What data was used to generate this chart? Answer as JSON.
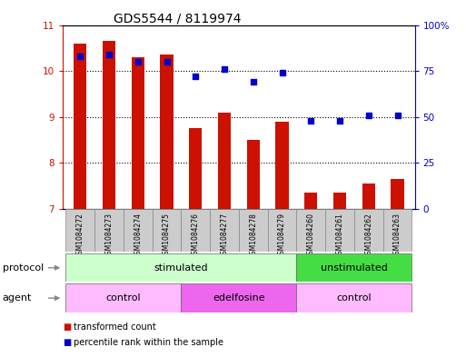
{
  "title": "GDS5544 / 8119974",
  "samples": [
    "GSM1084272",
    "GSM1084273",
    "GSM1084274",
    "GSM1084275",
    "GSM1084276",
    "GSM1084277",
    "GSM1084278",
    "GSM1084279",
    "GSM1084260",
    "GSM1084261",
    "GSM1084262",
    "GSM1084263"
  ],
  "transformed_count": [
    10.6,
    10.65,
    10.3,
    10.35,
    8.75,
    9.1,
    8.5,
    8.9,
    7.35,
    7.35,
    7.55,
    7.65
  ],
  "percentile_rank": [
    83,
    84,
    80,
    80,
    72,
    76,
    69,
    74,
    48,
    48,
    51,
    51
  ],
  "ylim_left": [
    7,
    11
  ],
  "ylim_right": [
    0,
    100
  ],
  "yticks_left": [
    7,
    8,
    9,
    10,
    11
  ],
  "yticks_right": [
    0,
    25,
    50,
    75,
    100
  ],
  "bar_color": "#cc1100",
  "dot_color": "#0000cc",
  "protocol_groups": [
    {
      "label": "stimulated",
      "start": 0,
      "end": 7,
      "color": "#ccffcc"
    },
    {
      "label": "unstimulated",
      "start": 8,
      "end": 11,
      "color": "#44dd44"
    }
  ],
  "agent_groups": [
    {
      "label": "control",
      "start": 0,
      "end": 3,
      "color": "#ffbbff"
    },
    {
      "label": "edelfosine",
      "start": 4,
      "end": 7,
      "color": "#ee66ee"
    },
    {
      "label": "control",
      "start": 8,
      "end": 11,
      "color": "#ffbbff"
    }
  ],
  "legend_items": [
    {
      "label": "transformed count",
      "color": "#cc1100"
    },
    {
      "label": "percentile rank within the sample",
      "color": "#0000cc"
    }
  ],
  "protocol_label": "protocol",
  "agent_label": "agent",
  "bar_width": 0.45
}
